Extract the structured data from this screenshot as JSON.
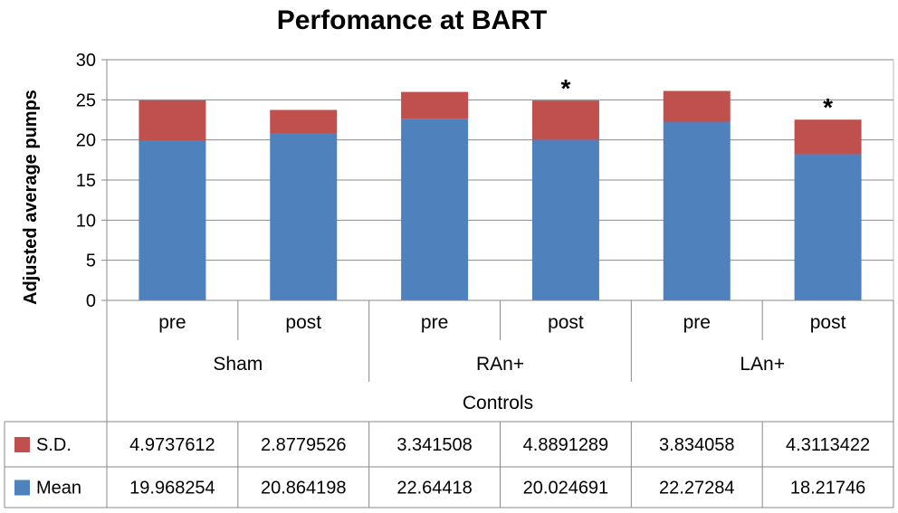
{
  "chart_data": {
    "type": "bar",
    "stacked": true,
    "title": "Perfomance at BART",
    "ylabel": "Adjusted average pumps",
    "xlabel": "Controls",
    "ylim": [
      0,
      30
    ],
    "yticks": [
      0,
      5,
      10,
      15,
      20,
      25,
      30
    ],
    "grid": true,
    "categories": [
      "pre",
      "post",
      "pre",
      "post",
      "pre",
      "post"
    ],
    "groups": [
      {
        "name": "Sham",
        "span": 2
      },
      {
        "name": "RAn+",
        "span": 2
      },
      {
        "name": "LAn+",
        "span": 2
      }
    ],
    "series": [
      {
        "name": "Mean",
        "color": "#4f81bd",
        "values": [
          19.968254,
          20.864198,
          22.64418,
          20.024691,
          22.27284,
          18.21746
        ],
        "labels": [
          "19.968254",
          "20.864198",
          "22.64418",
          "20.024691",
          "22.27284",
          "18.21746"
        ]
      },
      {
        "name": "S.D.",
        "color": "#c0504d",
        "values": [
          4.9737612,
          2.8779526,
          3.341508,
          4.8891289,
          3.834058,
          4.3113422
        ],
        "labels": [
          "4.9737612",
          "2.8779526",
          "3.341508",
          "4.8891289",
          "3.834058",
          "4.3113422"
        ]
      }
    ],
    "table_row_order": [
      "S.D.",
      "Mean"
    ],
    "annotations": [
      {
        "category_index": 3,
        "text": "*"
      },
      {
        "category_index": 5,
        "text": "*"
      }
    ]
  }
}
